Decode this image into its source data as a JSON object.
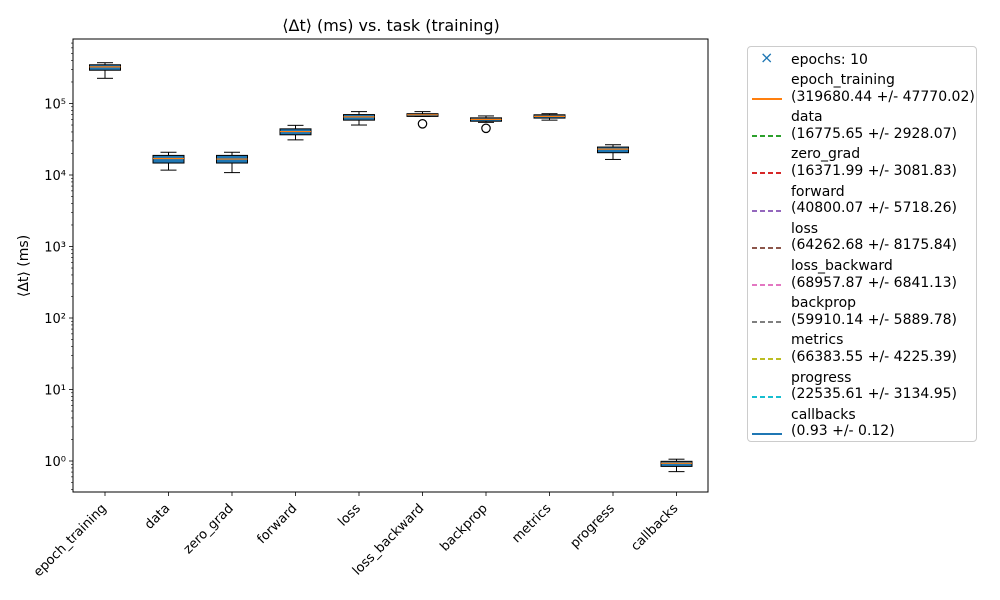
{
  "chart_data": {
    "type": "boxplot",
    "title": "⟨Δt⟩ (ms) vs. task (training)",
    "ylabel": "⟨Δt⟩ (ms)",
    "xlabel": "",
    "yscale": "log",
    "ylim": [
      0.37,
      800000
    ],
    "yticks": [
      {
        "value": 1,
        "label": "10⁰"
      },
      {
        "value": 10,
        "label": "10¹"
      },
      {
        "value": 100,
        "label": "10²"
      },
      {
        "value": 1000,
        "label": "10³"
      },
      {
        "value": 10000,
        "label": "10⁴"
      },
      {
        "value": 100000,
        "label": "10⁵"
      }
    ],
    "categories": [
      "epoch_training",
      "data",
      "zero_grad",
      "forward",
      "loss",
      "loss_backward",
      "backprop",
      "metrics",
      "progress",
      "callbacks"
    ],
    "boxes": [
      {
        "q1": 292000,
        "median": 325000,
        "q3": 348000,
        "whislo": 225000,
        "whishi": 372000,
        "fliers": []
      },
      {
        "q1": 14700,
        "median": 17000,
        "q3": 18800,
        "whislo": 11700,
        "whishi": 20800,
        "fliers": []
      },
      {
        "q1": 14700,
        "median": 16700,
        "q3": 18800,
        "whislo": 10800,
        "whishi": 20800,
        "fliers": []
      },
      {
        "q1": 36500,
        "median": 40500,
        "q3": 44200,
        "whislo": 31000,
        "whishi": 49500,
        "fliers": []
      },
      {
        "q1": 58500,
        "median": 65000,
        "q3": 70000,
        "whislo": 50000,
        "whishi": 77000,
        "fliers": []
      },
      {
        "q1": 66000,
        "median": 69500,
        "q3": 72000,
        "whislo": 66000,
        "whishi": 77000,
        "fliers": [
          52000
        ]
      },
      {
        "q1": 56500,
        "median": 60000,
        "q3": 63000,
        "whislo": 54500,
        "whishi": 67000,
        "fliers": [
          45000
        ]
      },
      {
        "q1": 62500,
        "median": 66000,
        "q3": 69500,
        "whislo": 58500,
        "whishi": 72000,
        "fliers": []
      },
      {
        "q1": 20500,
        "median": 23000,
        "q3": 24600,
        "whislo": 16500,
        "whishi": 26500,
        "fliers": []
      },
      {
        "q1": 0.84,
        "median": 0.93,
        "q3": 0.99,
        "whislo": 0.71,
        "whishi": 1.06,
        "fliers": []
      }
    ],
    "box_color": "#1f77b4",
    "median_color": "#ff7f0e",
    "legend": {
      "placement": "outside-right",
      "items": [
        {
          "lines": [
            "epochs: 10"
          ],
          "style": "marker-x",
          "color": "#1f77b4"
        },
        {
          "lines": [
            "epoch_training",
            "(319680.44 +/- 47770.02)"
          ],
          "style": "solid",
          "color": "#ff7f0e"
        },
        {
          "lines": [
            "data",
            "(16775.65 +/- 2928.07)"
          ],
          "style": "dashed",
          "color": "#2ca02c"
        },
        {
          "lines": [
            "zero_grad",
            "(16371.99 +/- 3081.83)"
          ],
          "style": "dashed",
          "color": "#d62728"
        },
        {
          "lines": [
            "forward",
            "(40800.07 +/- 5718.26)"
          ],
          "style": "dashed",
          "color": "#9467bd"
        },
        {
          "lines": [
            "loss",
            "(64262.68 +/- 8175.84)"
          ],
          "style": "dashed",
          "color": "#8c564b"
        },
        {
          "lines": [
            "loss_backward",
            "(68957.87 +/- 6841.13)"
          ],
          "style": "dashed",
          "color": "#e377c2"
        },
        {
          "lines": [
            "backprop",
            "(59910.14 +/- 5889.78)"
          ],
          "style": "dashed",
          "color": "#7f7f7f"
        },
        {
          "lines": [
            "metrics",
            "(66383.55 +/- 4225.39)"
          ],
          "style": "dashed",
          "color": "#bcbd22"
        },
        {
          "lines": [
            "progress",
            "(22535.61 +/- 3134.95)"
          ],
          "style": "dashed",
          "color": "#17becf"
        },
        {
          "lines": [
            "callbacks",
            "(0.93 +/- 0.12)"
          ],
          "style": "solid",
          "color": "#1f77b4"
        }
      ]
    }
  }
}
